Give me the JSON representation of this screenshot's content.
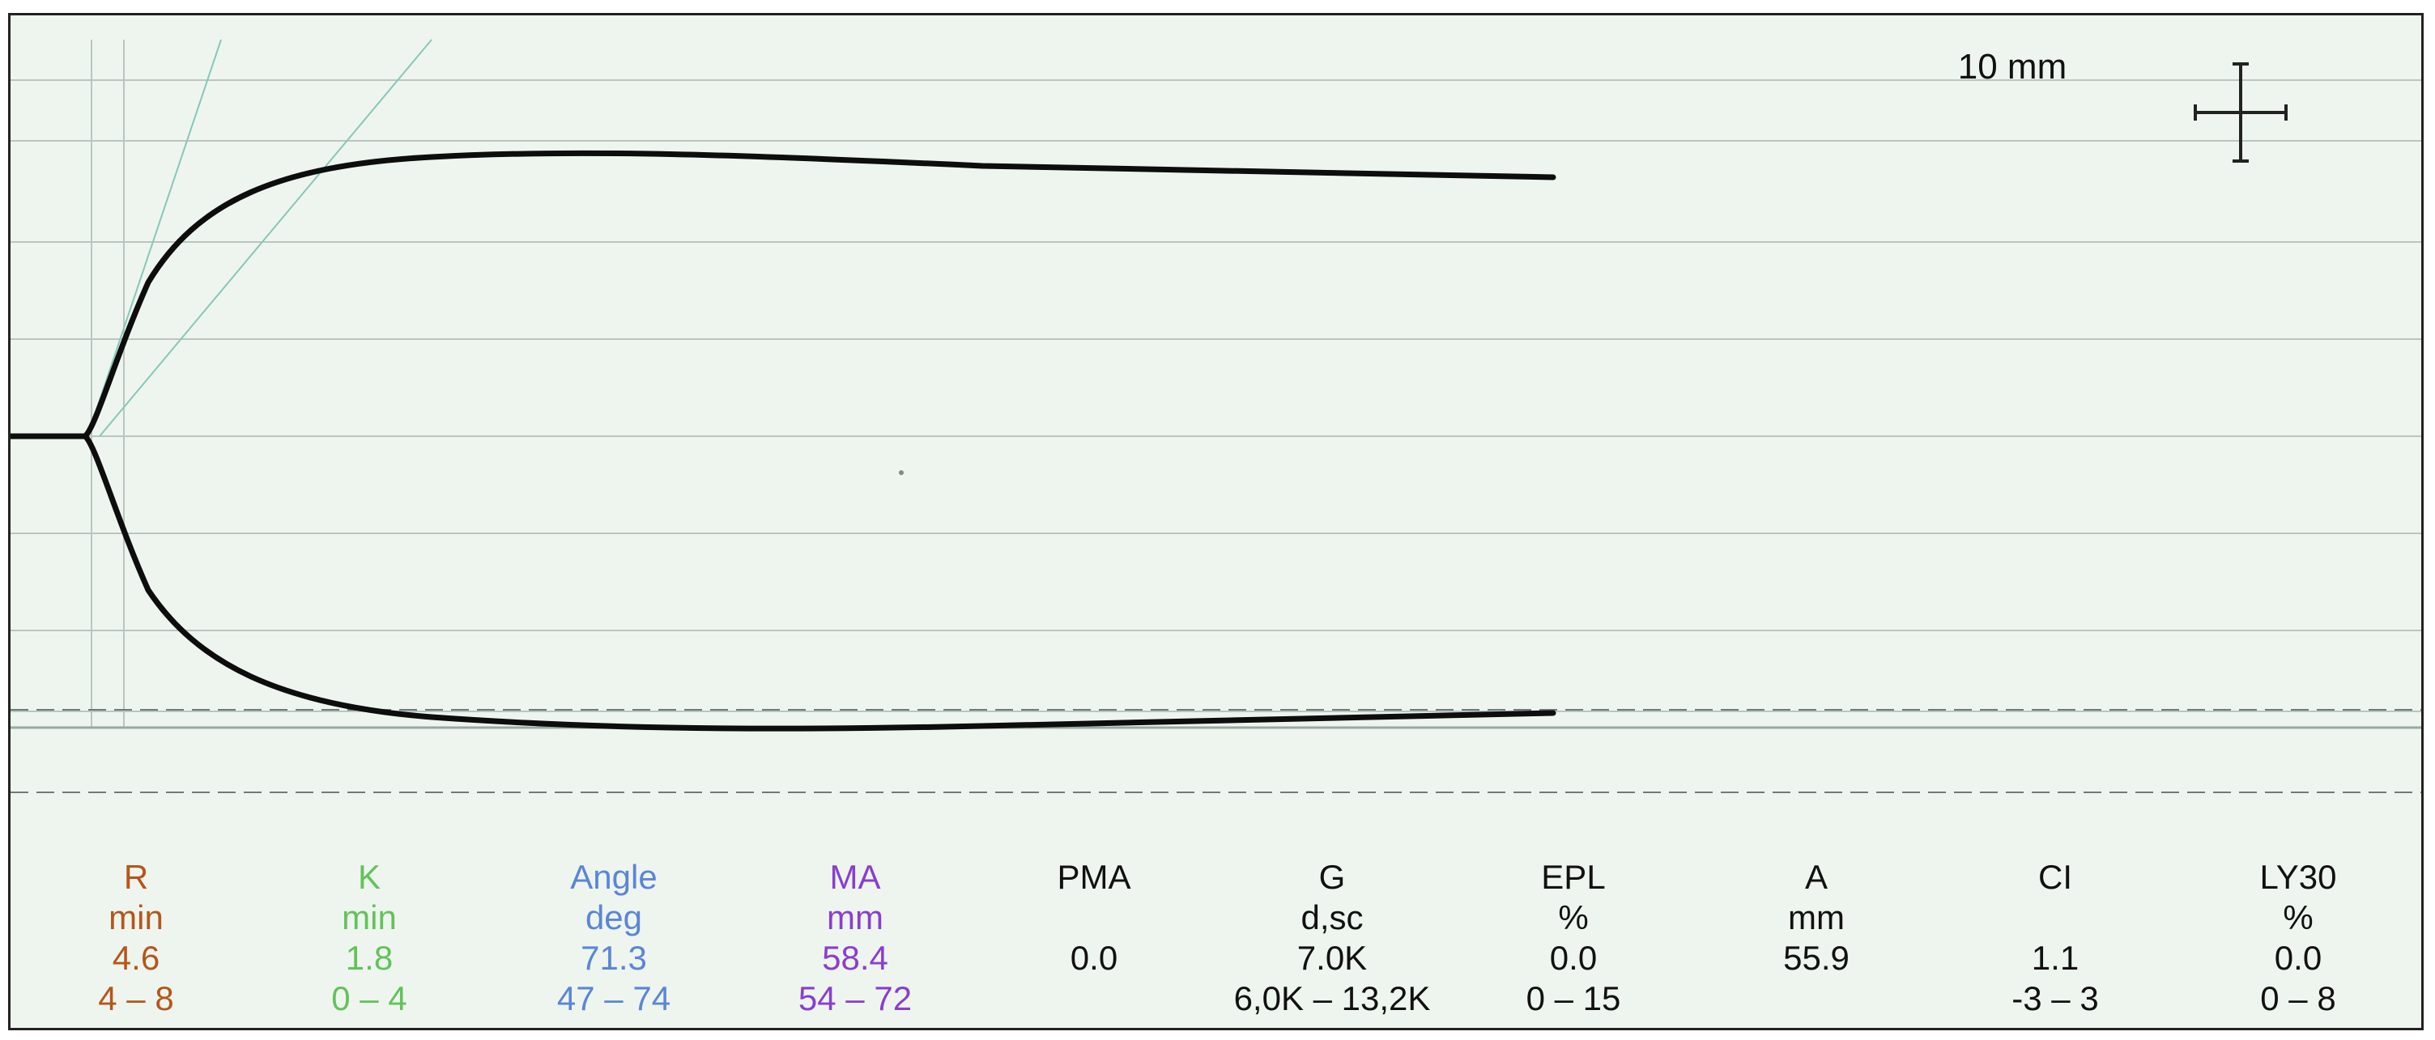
{
  "scale_label": "10 mm",
  "colors": {
    "r": "#b5561b",
    "k": "#63c25a",
    "angle": "#5b86d6",
    "ma": "#8a3ed0",
    "black": "#111111",
    "grid": "#b9c6bf",
    "trace": "#0d0d0d"
  },
  "parameters": [
    {
      "name": "R",
      "unit": "min",
      "value": "4.6",
      "range": "4 – 8",
      "color": "#b5561b"
    },
    {
      "name": "K",
      "unit": "min",
      "value": "1.8",
      "range": "0 – 4",
      "color": "#63c25a"
    },
    {
      "name": "Angle",
      "unit": "deg",
      "value": "71.3",
      "range": "47 – 74",
      "color": "#5b86d6"
    },
    {
      "name": "MA",
      "unit": "mm",
      "value": "58.4",
      "range": "54 – 72",
      "color": "#8a3ed0"
    },
    {
      "name": "PMA",
      "unit": "",
      "value": "0.0",
      "range": "",
      "color": "#111111"
    },
    {
      "name": "G",
      "unit": "d,sc",
      "value": "7.0K",
      "range": "6,0K – 13,2K",
      "color": "#111111"
    },
    {
      "name": "EPL",
      "unit": "%",
      "value": "0.0",
      "range": "0 – 15",
      "color": "#111111"
    },
    {
      "name": "A",
      "unit": "mm",
      "value": "55.9",
      "range": "",
      "color": "#111111"
    },
    {
      "name": "CI",
      "unit": "",
      "value": "1.1",
      "range": "-3 – 3",
      "color": "#111111"
    },
    {
      "name": "LY30",
      "unit": "%",
      "value": "0.0",
      "range": "0 – 8",
      "color": "#111111"
    }
  ]
}
